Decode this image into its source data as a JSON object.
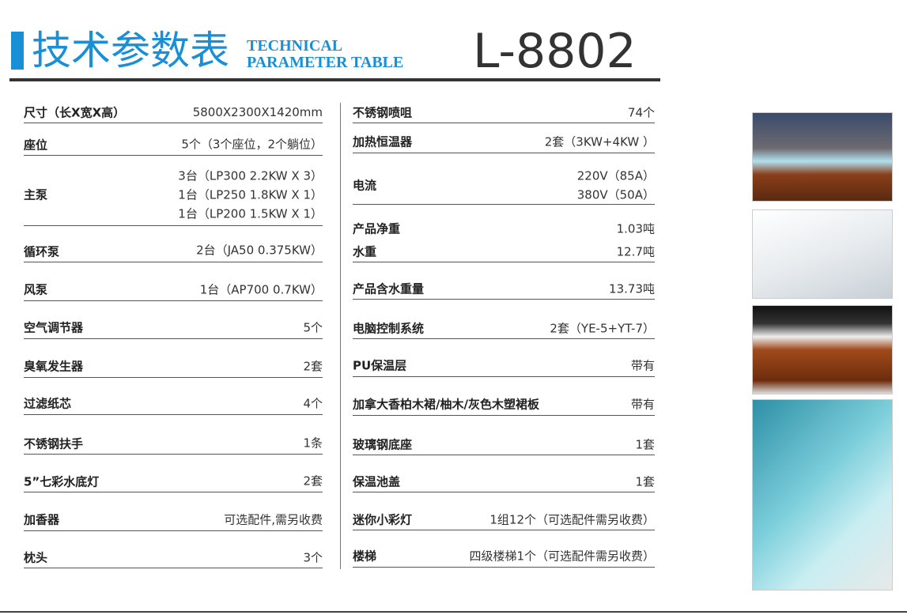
{
  "header": {
    "title": "技术参数表",
    "subtitle_lines": [
      "TECHNICAL",
      "PARAMETER TABLE"
    ],
    "model": "L-8802"
  },
  "left_table": {
    "rows": [
      {
        "label": "尺寸（长X宽X高）",
        "values": [
          "5800X2300X1420mm"
        ]
      },
      {
        "label": "座位",
        "values": [
          "5个（3个座位，2个躺位）"
        ]
      },
      {
        "label": "主泵",
        "values": [
          "3台（LP300 2.2KW X 3）",
          "1台（LP250 1.8KW X 1）",
          "1台（LP200 1.5KW X 1）"
        ]
      },
      {
        "label": "循环泵",
        "values": [
          "2台（JA50 0.375KW）"
        ]
      },
      {
        "label": "风泵",
        "values": [
          "1台（AP700 0.7KW）"
        ]
      },
      {
        "label": "空气调节器",
        "values": [
          "5个"
        ]
      },
      {
        "label": "臭氧发生器",
        "values": [
          "2套"
        ]
      },
      {
        "label": "过滤纸芯",
        "values": [
          "4个"
        ]
      },
      {
        "label": "不锈钢扶手",
        "values": [
          "1条"
        ]
      },
      {
        "label": "5”七彩水底灯",
        "values": [
          "2套"
        ]
      },
      {
        "label": "加香器",
        "values": [
          "可选配件,需另收费"
        ]
      },
      {
        "label": "枕头",
        "values": [
          "3个"
        ]
      }
    ]
  },
  "right_table": {
    "rows": [
      {
        "label": "不锈钢喷咀",
        "values": [
          "74个"
        ]
      },
      {
        "label": "加热恒温器",
        "values": [
          "2套（3KW+4KW ）"
        ]
      },
      {
        "label": "电流",
        "values": [
          "220V（85A）",
          "380V（50A）"
        ]
      },
      {
        "label": "产品净重",
        "values": [
          "1.03吨"
        ]
      },
      {
        "label": "水重",
        "values": [
          "12.7吨"
        ]
      },
      {
        "label": "产品含水重量",
        "values": [
          "13.73吨"
        ]
      },
      {
        "label": "电脑控制系统",
        "values": [
          "2套（YE-5+YT-7）"
        ]
      },
      {
        "label": "PU保温层",
        "values": [
          "带有"
        ]
      },
      {
        "label": "加拿大香柏木裙/柚木/灰色木塑裙板",
        "values": [
          "带有"
        ]
      },
      {
        "label": "玻璃钢底座",
        "values": [
          "1套"
        ]
      },
      {
        "label": "保温池盖",
        "values": [
          "1套"
        ]
      },
      {
        "label": "迷你小彩灯",
        "values": [
          "1组12个（可选配件需另收费）"
        ]
      },
      {
        "label": "楼梯",
        "values": [
          "四级楼梯1个（可选配件需另收费）"
        ]
      }
    ]
  }
}
